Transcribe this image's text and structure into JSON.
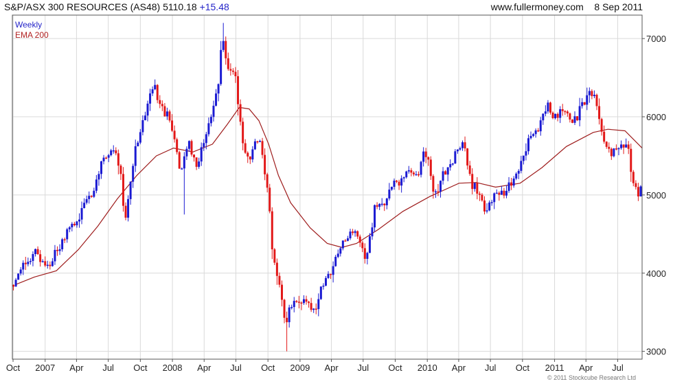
{
  "header": {
    "name": "S&P/ASX 300 RESOURCES (AS48)",
    "last": "5110.18",
    "change": "+15.48",
    "site": "www.fullermoney.com",
    "date": "8 Sep 2011"
  },
  "legend": {
    "weekly": "Weekly",
    "ema": "EMA 200"
  },
  "footer": "© 2011 Stockcube Research Ltd",
  "colors": {
    "up": "#1a1ad2",
    "down": "#e21818",
    "ema": "#9e1c1c",
    "grid": "#d9d9d9",
    "axis": "#555555"
  },
  "chart_data": {
    "type": "candlestick",
    "title": "S&P/ASX 300 RESOURCES (AS48)",
    "interval": "Weekly",
    "ylim": [
      2900,
      7300
    ],
    "yticks": [
      3000,
      4000,
      5000,
      6000,
      7000
    ],
    "x_start": "2006-09-29",
    "x_end": "2011-09-09",
    "xticks": [
      {
        "label": "Oct",
        "date": "2006-10-01"
      },
      {
        "label": "2007",
        "date": "2007-01-01"
      },
      {
        "label": "Apr",
        "date": "2007-04-01"
      },
      {
        "label": "Jul",
        "date": "2007-07-01"
      },
      {
        "label": "Oct",
        "date": "2007-10-01"
      },
      {
        "label": "2008",
        "date": "2008-01-01"
      },
      {
        "label": "Apr",
        "date": "2008-04-01"
      },
      {
        "label": "Jul",
        "date": "2008-07-01"
      },
      {
        "label": "Oct",
        "date": "2008-10-01"
      },
      {
        "label": "2009",
        "date": "2009-01-01"
      },
      {
        "label": "Apr",
        "date": "2009-04-01"
      },
      {
        "label": "Jul",
        "date": "2009-07-01"
      },
      {
        "label": "Oct",
        "date": "2009-10-01"
      },
      {
        "label": "2010",
        "date": "2010-01-01"
      },
      {
        "label": "Apr",
        "date": "2010-04-01"
      },
      {
        "label": "Jul",
        "date": "2010-07-01"
      },
      {
        "label": "Oct",
        "date": "2010-10-01"
      },
      {
        "label": "2011",
        "date": "2011-01-01"
      },
      {
        "label": "Apr",
        "date": "2011-04-01"
      },
      {
        "label": "Jul",
        "date": "2011-07-01"
      }
    ],
    "close_path": [
      [
        "2006-10-06",
        3850
      ],
      [
        "2006-11-03",
        4150
      ],
      [
        "2006-12-15",
        4220
      ],
      [
        "2007-01-12",
        4050
      ],
      [
        "2007-02-09",
        4350
      ],
      [
        "2007-03-09",
        4550
      ],
      [
        "2007-04-13",
        4750
      ],
      [
        "2007-05-11",
        5000
      ],
      [
        "2007-06-08",
        5300
      ],
      [
        "2007-07-13",
        5650
      ],
      [
        "2007-08-03",
        5300
      ],
      [
        "2007-08-17",
        4700
      ],
      [
        "2007-09-07",
        5300
      ],
      [
        "2007-10-05",
        5900
      ],
      [
        "2007-11-02",
        6400
      ],
      [
        "2007-11-23",
        6200
      ],
      [
        "2007-12-14",
        6050
      ],
      [
        "2008-01-04",
        5750
      ],
      [
        "2008-01-25",
        5300
      ],
      [
        "2008-02-15",
        5650
      ],
      [
        "2008-03-14",
        5400
      ],
      [
        "2008-04-11",
        5850
      ],
      [
        "2008-05-09",
        6350
      ],
      [
        "2008-05-23",
        6950
      ],
      [
        "2008-06-06",
        6650
      ],
      [
        "2008-06-27",
        6600
      ],
      [
        "2008-07-18",
        5700
      ],
      [
        "2008-08-08",
        5500
      ],
      [
        "2008-09-05",
        5700
      ],
      [
        "2008-09-26",
        5300
      ],
      [
        "2008-10-17",
        4100
      ],
      [
        "2008-11-07",
        3800
      ],
      [
        "2008-11-21",
        3300
      ],
      [
        "2008-12-12",
        3650
      ],
      [
        "2009-01-09",
        3650
      ],
      [
        "2009-02-06",
        3500
      ],
      [
        "2009-03-06",
        3800
      ],
      [
        "2009-04-03",
        4100
      ],
      [
        "2009-05-01",
        4300
      ],
      [
        "2009-05-29",
        4600
      ],
      [
        "2009-06-19",
        4400
      ],
      [
        "2009-07-10",
        4250
      ],
      [
        "2009-08-07",
        4850
      ],
      [
        "2009-09-04",
        4950
      ],
      [
        "2009-10-02",
        5150
      ],
      [
        "2009-10-30",
        5300
      ],
      [
        "2009-11-27",
        5250
      ],
      [
        "2009-12-25",
        5550
      ],
      [
        "2010-01-22",
        5050
      ],
      [
        "2010-02-19",
        5250
      ],
      [
        "2010-03-19",
        5500
      ],
      [
        "2010-04-16",
        5650
      ],
      [
        "2010-05-07",
        5200
      ],
      [
        "2010-05-28",
        4950
      ],
      [
        "2010-06-25",
        4850
      ],
      [
        "2010-07-23",
        5050
      ],
      [
        "2010-08-20",
        5050
      ],
      [
        "2010-09-17",
        5300
      ],
      [
        "2010-10-15",
        5650
      ],
      [
        "2010-11-12",
        5900
      ],
      [
        "2010-12-10",
        6100
      ],
      [
        "2011-01-07",
        6050
      ],
      [
        "2011-02-04",
        6050
      ],
      [
        "2011-03-04",
        5950
      ],
      [
        "2011-03-25",
        6200
      ],
      [
        "2011-04-15",
        6400
      ],
      [
        "2011-04-29",
        6150
      ],
      [
        "2011-05-20",
        5750
      ],
      [
        "2011-06-17",
        5500
      ],
      [
        "2011-07-08",
        5650
      ],
      [
        "2011-07-29",
        5700
      ],
      [
        "2011-08-12",
        5100
      ],
      [
        "2011-08-26",
        5050
      ],
      [
        "2011-09-09",
        5110
      ]
    ],
    "ema200": [
      [
        "2006-10-06",
        3850
      ],
      [
        "2006-12-01",
        3950
      ],
      [
        "2007-02-02",
        4030
      ],
      [
        "2007-04-06",
        4300
      ],
      [
        "2007-06-01",
        4600
      ],
      [
        "2007-07-27",
        4950
      ],
      [
        "2007-09-21",
        5250
      ],
      [
        "2007-11-16",
        5500
      ],
      [
        "2008-01-04",
        5600
      ],
      [
        "2008-02-29",
        5550
      ],
      [
        "2008-04-25",
        5650
      ],
      [
        "2008-06-06",
        5900
      ],
      [
        "2008-07-11",
        6120
      ],
      [
        "2008-08-08",
        6100
      ],
      [
        "2008-09-05",
        5950
      ],
      [
        "2008-10-03",
        5650
      ],
      [
        "2008-10-31",
        5250
      ],
      [
        "2008-12-05",
        4900
      ],
      [
        "2009-01-30",
        4580
      ],
      [
        "2009-03-20",
        4380
      ],
      [
        "2009-05-01",
        4330
      ],
      [
        "2009-06-12",
        4380
      ],
      [
        "2009-08-14",
        4560
      ],
      [
        "2009-10-23",
        4790
      ],
      [
        "2010-01-08",
        4980
      ],
      [
        "2010-04-02",
        5150
      ],
      [
        "2010-05-21",
        5160
      ],
      [
        "2010-07-16",
        5100
      ],
      [
        "2010-09-24",
        5150
      ],
      [
        "2010-11-26",
        5350
      ],
      [
        "2011-02-04",
        5620
      ],
      [
        "2011-04-22",
        5800
      ],
      [
        "2011-06-03",
        5840
      ],
      [
        "2011-07-22",
        5820
      ],
      [
        "2011-09-09",
        5600
      ]
    ],
    "extremes": [
      {
        "date": "2008-02-01",
        "low": 4750
      },
      {
        "date": "2008-05-23",
        "high": 7200
      },
      {
        "date": "2008-11-21",
        "low": 3000
      }
    ]
  }
}
